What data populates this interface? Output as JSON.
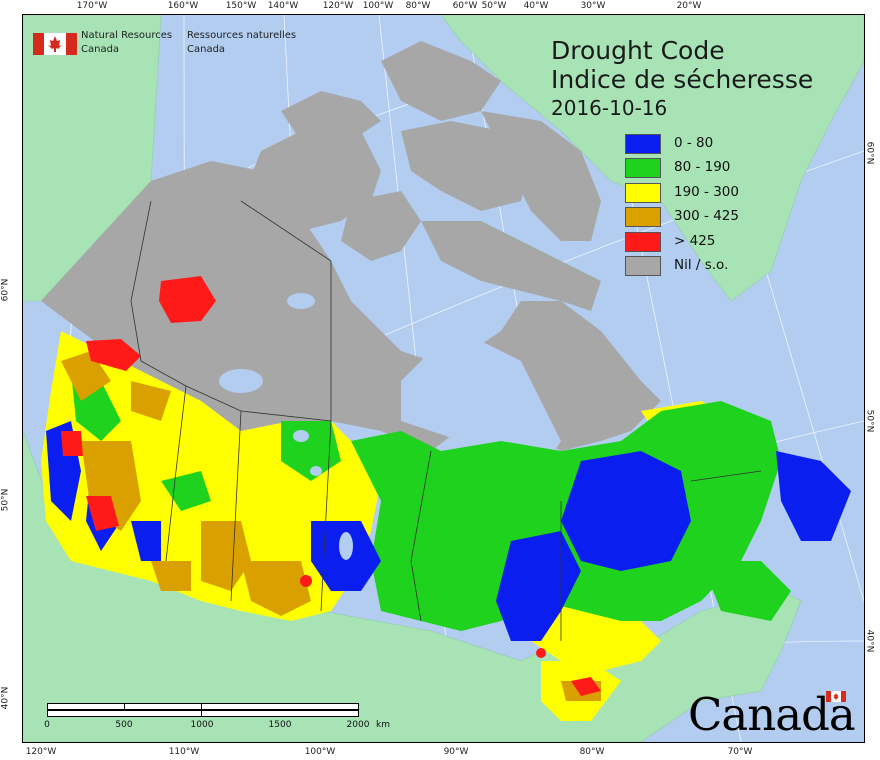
{
  "map": {
    "title_en": "Drought Code",
    "title_fr": "Indice de sécheresse",
    "date": "2016-10-16",
    "agency_en": [
      "Natural Resources",
      "Canada"
    ],
    "agency_fr": [
      "Ressources naturelles",
      "Canada"
    ],
    "wordmark": "Canada",
    "legend": [
      {
        "label": "0 - 80",
        "color": "#0a1ef0"
      },
      {
        "label": "80 - 190",
        "color": "#1ed21e"
      },
      {
        "label": "190 - 300",
        "color": "#ffff00"
      },
      {
        "label": "300 - 425",
        "color": "#d9a000"
      },
      {
        "label": "> 425",
        "color": "#ff1a1a"
      },
      {
        "label": "Nil / s.o.",
        "color": "#a7a7a7"
      }
    ],
    "colors": {
      "ocean": "#b2cdf0",
      "neighbouring_land": "#a8e3b6",
      "no_data": "#a7a7a7",
      "lake": "#b2cdf0"
    },
    "top_ticks": [
      "170°W",
      "160°W",
      "150°W",
      "140°W",
      "120°W",
      "100°W",
      "80°W",
      "60°W",
      "50°W",
      "40°W",
      "30°W",
      "20°W"
    ],
    "bottom_ticks": [
      "120°W",
      "110°W",
      "100°W",
      "90°W",
      "80°W",
      "70°W"
    ],
    "left_ticks": [
      "60°N",
      "50°N",
      "40°N"
    ],
    "right_ticks": [
      "60°N",
      "50°N",
      "40°N"
    ],
    "scale": {
      "labels": [
        "0",
        "500",
        "1000",
        "1500",
        "2000"
      ],
      "unit": "km"
    }
  }
}
